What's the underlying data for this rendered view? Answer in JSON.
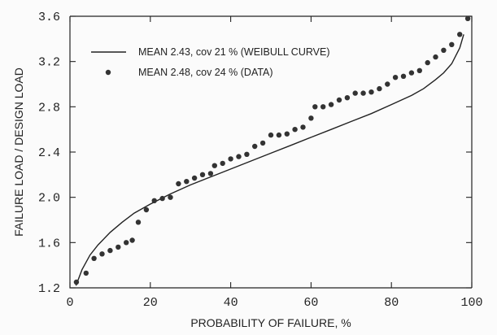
{
  "chart_data": {
    "type": "scatter",
    "title": "",
    "xlabel": "PROBABILITY OF FAILURE,  %",
    "ylabel": "FAILURE LOAD / DESIGN LOAD",
    "xlim": [
      0,
      100
    ],
    "ylim": [
      1.2,
      3.6
    ],
    "x_ticks": [
      0,
      20,
      40,
      60,
      80,
      100
    ],
    "x_tick_labels": [
      "0",
      "20",
      "40",
      "60",
      "80",
      "100"
    ],
    "y_ticks": [
      1.2,
      1.6,
      2.0,
      2.4,
      2.8,
      3.2,
      3.6
    ],
    "y_tick_labels": [
      "1.2",
      "1.6",
      "2.0",
      "2.4",
      "2.8",
      "3.2",
      "3.6"
    ],
    "grid": false,
    "legend_position": "top-left",
    "series": [
      {
        "name": "MEAN 2.43, cov 21 % (WEIBULL CURVE)",
        "kind": "line",
        "color": "#222222",
        "points": [
          [
            1.5,
            1.22
          ],
          [
            3,
            1.36
          ],
          [
            5,
            1.49
          ],
          [
            7,
            1.58
          ],
          [
            10,
            1.69
          ],
          [
            13,
            1.78
          ],
          [
            16,
            1.86
          ],
          [
            20,
            1.94
          ],
          [
            25,
            2.03
          ],
          [
            30,
            2.11
          ],
          [
            35,
            2.18
          ],
          [
            40,
            2.25
          ],
          [
            45,
            2.32
          ],
          [
            50,
            2.39
          ],
          [
            55,
            2.46
          ],
          [
            60,
            2.53
          ],
          [
            65,
            2.6
          ],
          [
            70,
            2.67
          ],
          [
            75,
            2.74
          ],
          [
            80,
            2.82
          ],
          [
            85,
            2.9
          ],
          [
            88,
            2.96
          ],
          [
            91,
            3.04
          ],
          [
            93,
            3.1
          ],
          [
            95,
            3.18
          ],
          [
            97,
            3.32
          ],
          [
            98,
            3.44
          ]
        ]
      },
      {
        "name": "MEAN 2.48, cov 24 % (DATA)",
        "kind": "scatter",
        "color": "#333333",
        "points": [
          [
            1.6,
            1.25
          ],
          [
            4,
            1.33
          ],
          [
            6,
            1.46
          ],
          [
            8,
            1.5
          ],
          [
            10,
            1.53
          ],
          [
            12,
            1.56
          ],
          [
            14,
            1.6
          ],
          [
            15.5,
            1.62
          ],
          [
            17,
            1.78
          ],
          [
            19,
            1.89
          ],
          [
            21,
            1.97
          ],
          [
            23,
            1.99
          ],
          [
            25,
            2.0
          ],
          [
            27,
            2.12
          ],
          [
            29,
            2.14
          ],
          [
            31,
            2.17
          ],
          [
            33,
            2.2
          ],
          [
            35,
            2.21
          ],
          [
            36,
            2.28
          ],
          [
            38,
            2.3
          ],
          [
            40,
            2.34
          ],
          [
            42,
            2.36
          ],
          [
            44,
            2.38
          ],
          [
            46,
            2.45
          ],
          [
            48,
            2.48
          ],
          [
            50,
            2.55
          ],
          [
            52,
            2.55
          ],
          [
            54,
            2.56
          ],
          [
            56,
            2.6
          ],
          [
            58,
            2.62
          ],
          [
            60,
            2.7
          ],
          [
            61,
            2.8
          ],
          [
            63,
            2.8
          ],
          [
            65,
            2.82
          ],
          [
            67,
            2.86
          ],
          [
            69,
            2.88
          ],
          [
            71,
            2.92
          ],
          [
            73,
            2.92
          ],
          [
            75,
            2.93
          ],
          [
            77,
            2.96
          ],
          [
            79,
            3.0
          ],
          [
            81,
            3.06
          ],
          [
            83,
            3.07
          ],
          [
            85,
            3.1
          ],
          [
            87,
            3.12
          ],
          [
            89,
            3.19
          ],
          [
            91,
            3.24
          ],
          [
            93,
            3.3
          ],
          [
            95,
            3.35
          ],
          [
            97,
            3.44
          ],
          [
            99,
            3.58
          ]
        ]
      }
    ]
  }
}
